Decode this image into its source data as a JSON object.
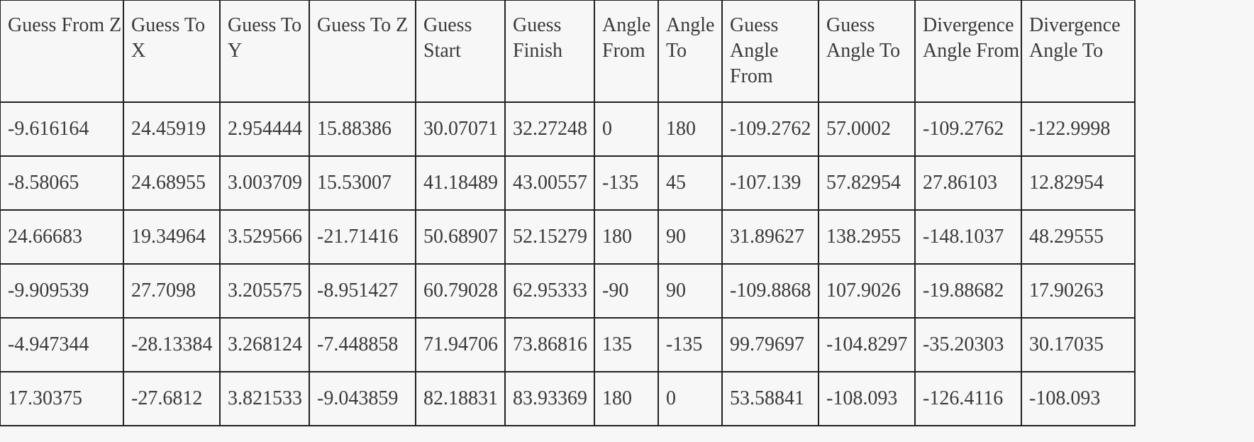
{
  "table": {
    "headers": [
      "Guess From Z",
      "Guess To X",
      "Guess To Y",
      "Guess To Z",
      "Guess Start",
      "Guess Finish",
      "Angle From",
      "Angle To",
      "Guess Angle From",
      "Guess Angle To",
      "Divergence Angle From",
      "Divergence Angle To"
    ],
    "rows": [
      [
        "-9.616164",
        "24.45919",
        "2.954444",
        "15.88386",
        "30.07071",
        "32.27248",
        "0",
        "180",
        "-109.2762",
        "57.0002",
        "-109.2762",
        "-122.9998"
      ],
      [
        "-8.58065",
        "24.68955",
        "3.003709",
        "15.53007",
        "41.18489",
        "43.00557",
        "-135",
        "45",
        "-107.139",
        "57.82954",
        "27.86103",
        "12.82954"
      ],
      [
        "24.66683",
        "19.34964",
        "3.529566",
        "-21.71416",
        "50.68907",
        "52.15279",
        "180",
        "90",
        "31.89627",
        "138.2955",
        "-148.1037",
        "48.29555"
      ],
      [
        "-9.909539",
        "27.7098",
        "3.205575",
        "-8.951427",
        "60.79028",
        "62.95333",
        "-90",
        "90",
        "-109.8868",
        "107.9026",
        "-19.88682",
        "17.90263"
      ],
      [
        "-4.947344",
        "-28.13384",
        "3.268124",
        "-7.448858",
        "71.94706",
        "73.86816",
        "135",
        "-135",
        "99.79697",
        "-104.8297",
        "-35.20303",
        "30.17035"
      ],
      [
        "17.30375",
        "-27.6812",
        "3.821533",
        "-9.043859",
        "82.18831",
        "83.93369",
        "180",
        "0",
        "53.58841",
        "-108.093",
        "-126.4116",
        "-108.093"
      ]
    ]
  }
}
